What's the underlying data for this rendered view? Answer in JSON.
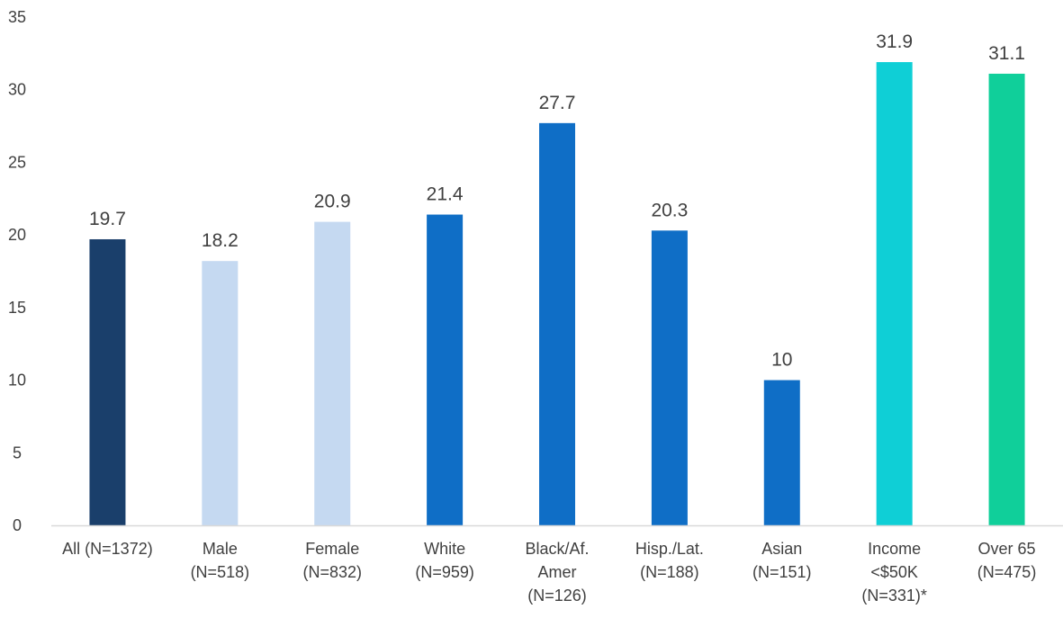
{
  "chart_data": {
    "type": "bar",
    "title": "",
    "xlabel": "",
    "ylabel": "",
    "ylim": [
      0,
      35
    ],
    "yticks": [
      0,
      5,
      10,
      15,
      20,
      25,
      30,
      35
    ],
    "grid": false,
    "legend": "none",
    "categories": [
      [
        "All (N=1372)"
      ],
      [
        "Male",
        "(N=518)"
      ],
      [
        "Female",
        "(N=832)"
      ],
      [
        "White",
        "(N=959)"
      ],
      [
        "Black/Af.",
        "Amer",
        "(N=126)"
      ],
      [
        "Hisp./Lat.",
        "(N=188)"
      ],
      [
        "Asian",
        "(N=151)"
      ],
      [
        "Income",
        "<$50K",
        "(N=331)*"
      ],
      [
        "Over 65",
        "(N=475)"
      ]
    ],
    "values": [
      19.7,
      18.2,
      20.9,
      21.4,
      27.7,
      20.3,
      10,
      31.9,
      31.1
    ],
    "data_labels": [
      "19.7",
      "18.2",
      "20.9",
      "21.4",
      "27.7",
      "20.3",
      "10",
      "31.9",
      "31.1"
    ],
    "colors": [
      "#1a3f6b",
      "#c5d9f1",
      "#c5d9f1",
      "#0f6ec6",
      "#0f6ec6",
      "#0f6ec6",
      "#0f6ec6",
      "#0fcfd6",
      "#10cf9a"
    ],
    "axis_color": "#d9d9d9"
  }
}
